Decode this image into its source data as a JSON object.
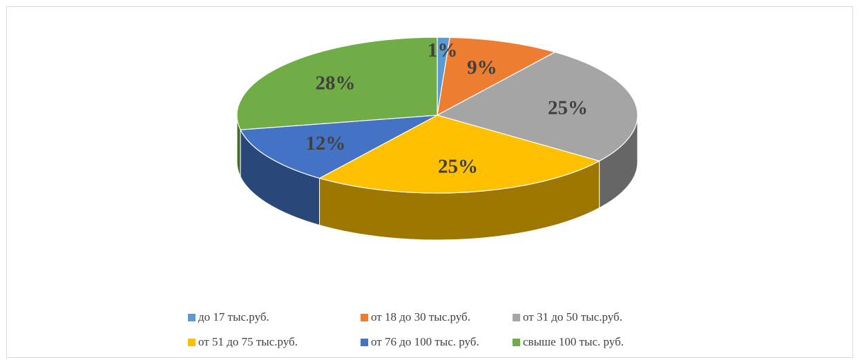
{
  "chart_data": {
    "type": "pie",
    "title": "",
    "style": "3d",
    "legend_position": "bottom",
    "slices": [
      {
        "label": "до 17 тыс.руб.",
        "value": 1,
        "data_label": "1%",
        "color": "#5b9bd5"
      },
      {
        "label": "от 18 до 30 тыс.руб.",
        "value": 9,
        "data_label": "9%",
        "color": "#ed7d31"
      },
      {
        "label": "от 31 до 50 тыс.руб.",
        "value": 25,
        "data_label": "25%",
        "color": "#a5a5a5"
      },
      {
        "label": "от 51 до 75 тыс.руб.",
        "value": 25,
        "data_label": "25%",
        "color": "#ffc000"
      },
      {
        "label": "от 76 до 100 тыс. руб.",
        "value": 12,
        "data_label": "12%",
        "color": "#4472c4"
      },
      {
        "label": "свыше 100 тыс. руб.",
        "value": 28,
        "data_label": "28%",
        "color": "#70ad47"
      }
    ]
  }
}
